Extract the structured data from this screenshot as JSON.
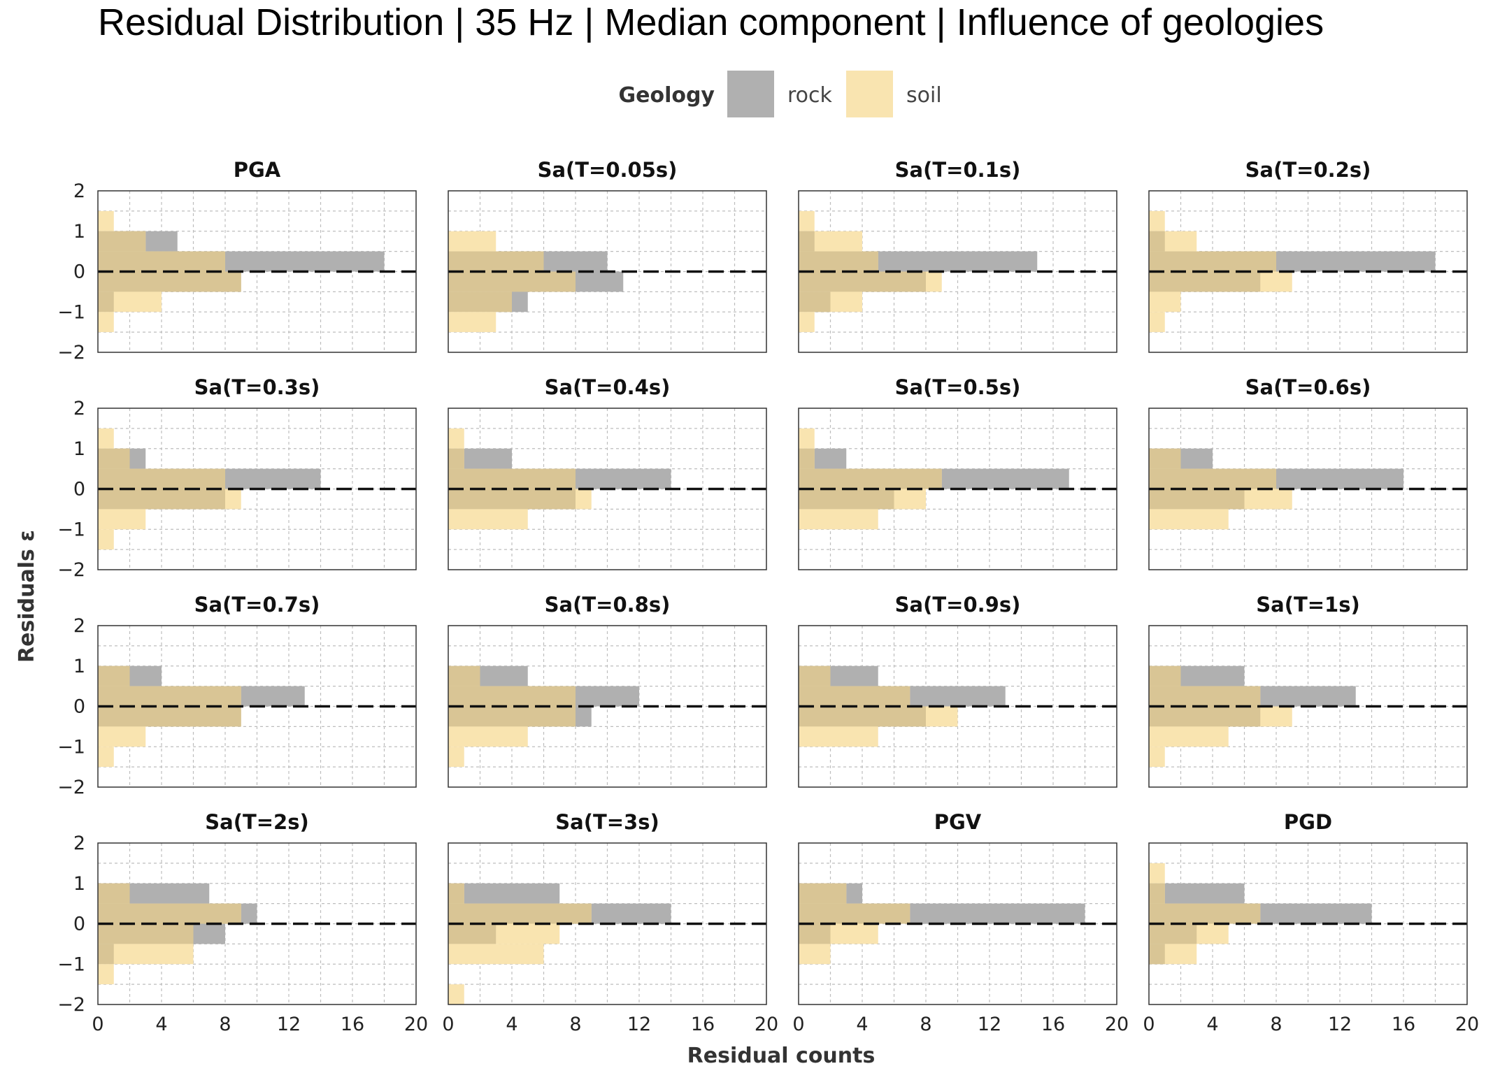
{
  "chart_data": {
    "type": "bar",
    "orientation": "horizontal",
    "title": "Residual Distribution | 35 Hz | Median component | Influence of geologies",
    "xlabel": "Residual counts",
    "ylabel": "Residuals  ε",
    "xlim": [
      0,
      20
    ],
    "ylim": [
      -2,
      2
    ],
    "x_ticks": [
      0,
      4,
      8,
      12,
      16,
      20
    ],
    "y_ticks": [
      2,
      1,
      0,
      -1,
      -2
    ],
    "y_tick_labels": [
      "2",
      "1",
      "0",
      "−1",
      "−2"
    ],
    "bins": [
      [
        1,
        1.5
      ],
      [
        0.5,
        1
      ],
      [
        0,
        0.5
      ],
      [
        -0.5,
        0
      ],
      [
        -1,
        -0.5
      ],
      [
        -1.5,
        -1
      ],
      [
        -2,
        -1.5
      ]
    ],
    "reference_line": 0,
    "grid": true,
    "legend": {
      "title": "Geology",
      "position": "top-center",
      "entries": [
        {
          "name": "rock",
          "color": "#b0b0b0"
        },
        {
          "name": "soil",
          "color": "#f9e4b0"
        }
      ]
    },
    "overlap_color": "#d9c595",
    "panels": [
      {
        "title": "PGA",
        "rock": [
          0,
          5,
          18,
          9,
          1,
          0,
          0
        ],
        "soil": [
          1,
          3,
          8,
          9,
          4,
          1,
          0
        ]
      },
      {
        "title": "Sa(T=0.05s)",
        "rock": [
          0,
          0,
          10,
          11,
          5,
          0,
          0
        ],
        "soil": [
          0,
          3,
          6,
          8,
          4,
          3,
          0
        ]
      },
      {
        "title": "Sa(T=0.1s)",
        "rock": [
          0,
          1,
          15,
          8,
          2,
          0,
          0
        ],
        "soil": [
          1,
          4,
          5,
          9,
          4,
          1,
          0
        ]
      },
      {
        "title": "Sa(T=0.2s)",
        "rock": [
          0,
          1,
          18,
          7,
          0,
          0,
          0
        ],
        "soil": [
          1,
          3,
          8,
          9,
          2,
          1,
          0
        ]
      },
      {
        "title": "Sa(T=0.3s)",
        "rock": [
          0,
          3,
          14,
          8,
          0,
          0,
          0
        ],
        "soil": [
          1,
          2,
          8,
          9,
          3,
          1,
          0
        ]
      },
      {
        "title": "Sa(T=0.4s)",
        "rock": [
          0,
          4,
          14,
          8,
          0,
          0,
          0
        ],
        "soil": [
          1,
          1,
          8,
          9,
          5,
          0,
          0
        ]
      },
      {
        "title": "Sa(T=0.5s)",
        "rock": [
          0,
          3,
          17,
          6,
          0,
          0,
          0
        ],
        "soil": [
          1,
          1,
          9,
          8,
          5,
          0,
          0
        ]
      },
      {
        "title": "Sa(T=0.6s)",
        "rock": [
          0,
          4,
          16,
          6,
          0,
          0,
          0
        ],
        "soil": [
          0,
          2,
          8,
          9,
          5,
          0,
          0
        ]
      },
      {
        "title": "Sa(T=0.7s)",
        "rock": [
          0,
          4,
          13,
          9,
          0,
          0,
          0
        ],
        "soil": [
          0,
          2,
          9,
          9,
          3,
          1,
          0
        ]
      },
      {
        "title": "Sa(T=0.8s)",
        "rock": [
          0,
          5,
          12,
          9,
          0,
          0,
          0
        ],
        "soil": [
          0,
          2,
          8,
          8,
          5,
          1,
          0
        ]
      },
      {
        "title": "Sa(T=0.9s)",
        "rock": [
          0,
          5,
          13,
          8,
          0,
          0,
          0
        ],
        "soil": [
          0,
          2,
          7,
          10,
          5,
          0,
          0
        ]
      },
      {
        "title": "Sa(T=1s)",
        "rock": [
          0,
          6,
          13,
          7,
          0,
          0,
          0
        ],
        "soil": [
          0,
          2,
          7,
          9,
          5,
          1,
          0
        ]
      },
      {
        "title": "Sa(T=2s)",
        "rock": [
          0,
          7,
          10,
          8,
          1,
          0,
          0
        ],
        "soil": [
          0,
          2,
          9,
          6,
          6,
          1,
          0
        ]
      },
      {
        "title": "Sa(T=3s)",
        "rock": [
          0,
          7,
          14,
          3,
          0,
          0,
          0
        ],
        "soil": [
          0,
          1,
          9,
          7,
          6,
          0,
          1
        ]
      },
      {
        "title": "PGV",
        "rock": [
          0,
          4,
          18,
          2,
          0,
          0,
          0
        ],
        "soil": [
          0,
          3,
          7,
          5,
          2,
          0,
          0
        ]
      },
      {
        "title": "PGD",
        "rock": [
          0,
          6,
          14,
          3,
          1,
          0,
          0
        ],
        "soil": [
          1,
          1,
          7,
          5,
          3,
          0,
          0
        ]
      }
    ]
  }
}
